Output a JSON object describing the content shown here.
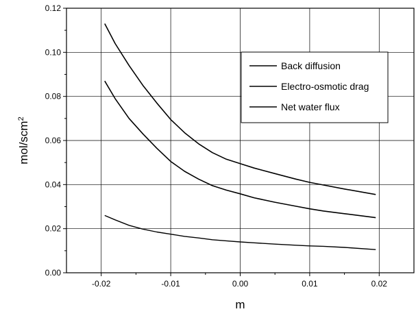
{
  "chart_data": {
    "type": "line",
    "xlabel": "m",
    "ylabel": "mol/scm²",
    "ylabel_parts": {
      "base": "mol/scm",
      "sup": "2"
    },
    "xlim": [
      -0.025,
      0.025
    ],
    "ylim": [
      0.0,
      0.12
    ],
    "x_ticks": [
      -0.02,
      -0.01,
      0.0,
      0.01,
      0.02
    ],
    "x_tick_labels": [
      "-0.02",
      "-0.01",
      "0.00",
      "0.01",
      "0.02"
    ],
    "y_ticks": [
      0.0,
      0.02,
      0.04,
      0.06,
      0.08,
      0.1,
      0.12
    ],
    "y_tick_labels": [
      "0.00",
      "0.02",
      "0.04",
      "0.06",
      "0.08",
      "0.10",
      "0.12"
    ],
    "grid": true,
    "legend_position": "top-right",
    "legend": [
      "Back diffusion",
      "Electro-osmotic drag",
      "Net water flux"
    ],
    "series": [
      {
        "name": "Back diffusion",
        "x": [
          -0.0195,
          -0.018,
          -0.016,
          -0.014,
          -0.012,
          -0.01,
          -0.008,
          -0.006,
          -0.004,
          -0.002,
          0.0,
          0.002,
          0.005,
          0.008,
          0.01,
          0.012,
          0.015,
          0.0195
        ],
        "y": [
          0.113,
          0.104,
          0.094,
          0.085,
          0.077,
          0.0695,
          0.0635,
          0.0585,
          0.0545,
          0.0515,
          0.0495,
          0.0475,
          0.045,
          0.0425,
          0.041,
          0.0398,
          0.038,
          0.0355
        ]
      },
      {
        "name": "Electro-osmotic drag",
        "x": [
          -0.0195,
          -0.018,
          -0.016,
          -0.014,
          -0.012,
          -0.01,
          -0.008,
          -0.006,
          -0.004,
          -0.002,
          0.0,
          0.002,
          0.005,
          0.008,
          0.01,
          0.012,
          0.015,
          0.0195
        ],
        "y": [
          0.087,
          0.079,
          0.07,
          0.063,
          0.0565,
          0.0505,
          0.046,
          0.0425,
          0.0395,
          0.0375,
          0.0358,
          0.034,
          0.032,
          0.0302,
          0.029,
          0.028,
          0.0268,
          0.025
        ]
      },
      {
        "name": "Net water flux",
        "x": [
          -0.0195,
          -0.018,
          -0.016,
          -0.014,
          -0.012,
          -0.01,
          -0.008,
          -0.006,
          -0.004,
          -0.002,
          0.0,
          0.002,
          0.005,
          0.008,
          0.01,
          0.012,
          0.015,
          0.0195
        ],
        "y": [
          0.026,
          0.024,
          0.0215,
          0.0198,
          0.0185,
          0.0175,
          0.0165,
          0.0158,
          0.015,
          0.0145,
          0.014,
          0.0136,
          0.013,
          0.0125,
          0.0122,
          0.012,
          0.0115,
          0.0105
        ]
      }
    ]
  }
}
